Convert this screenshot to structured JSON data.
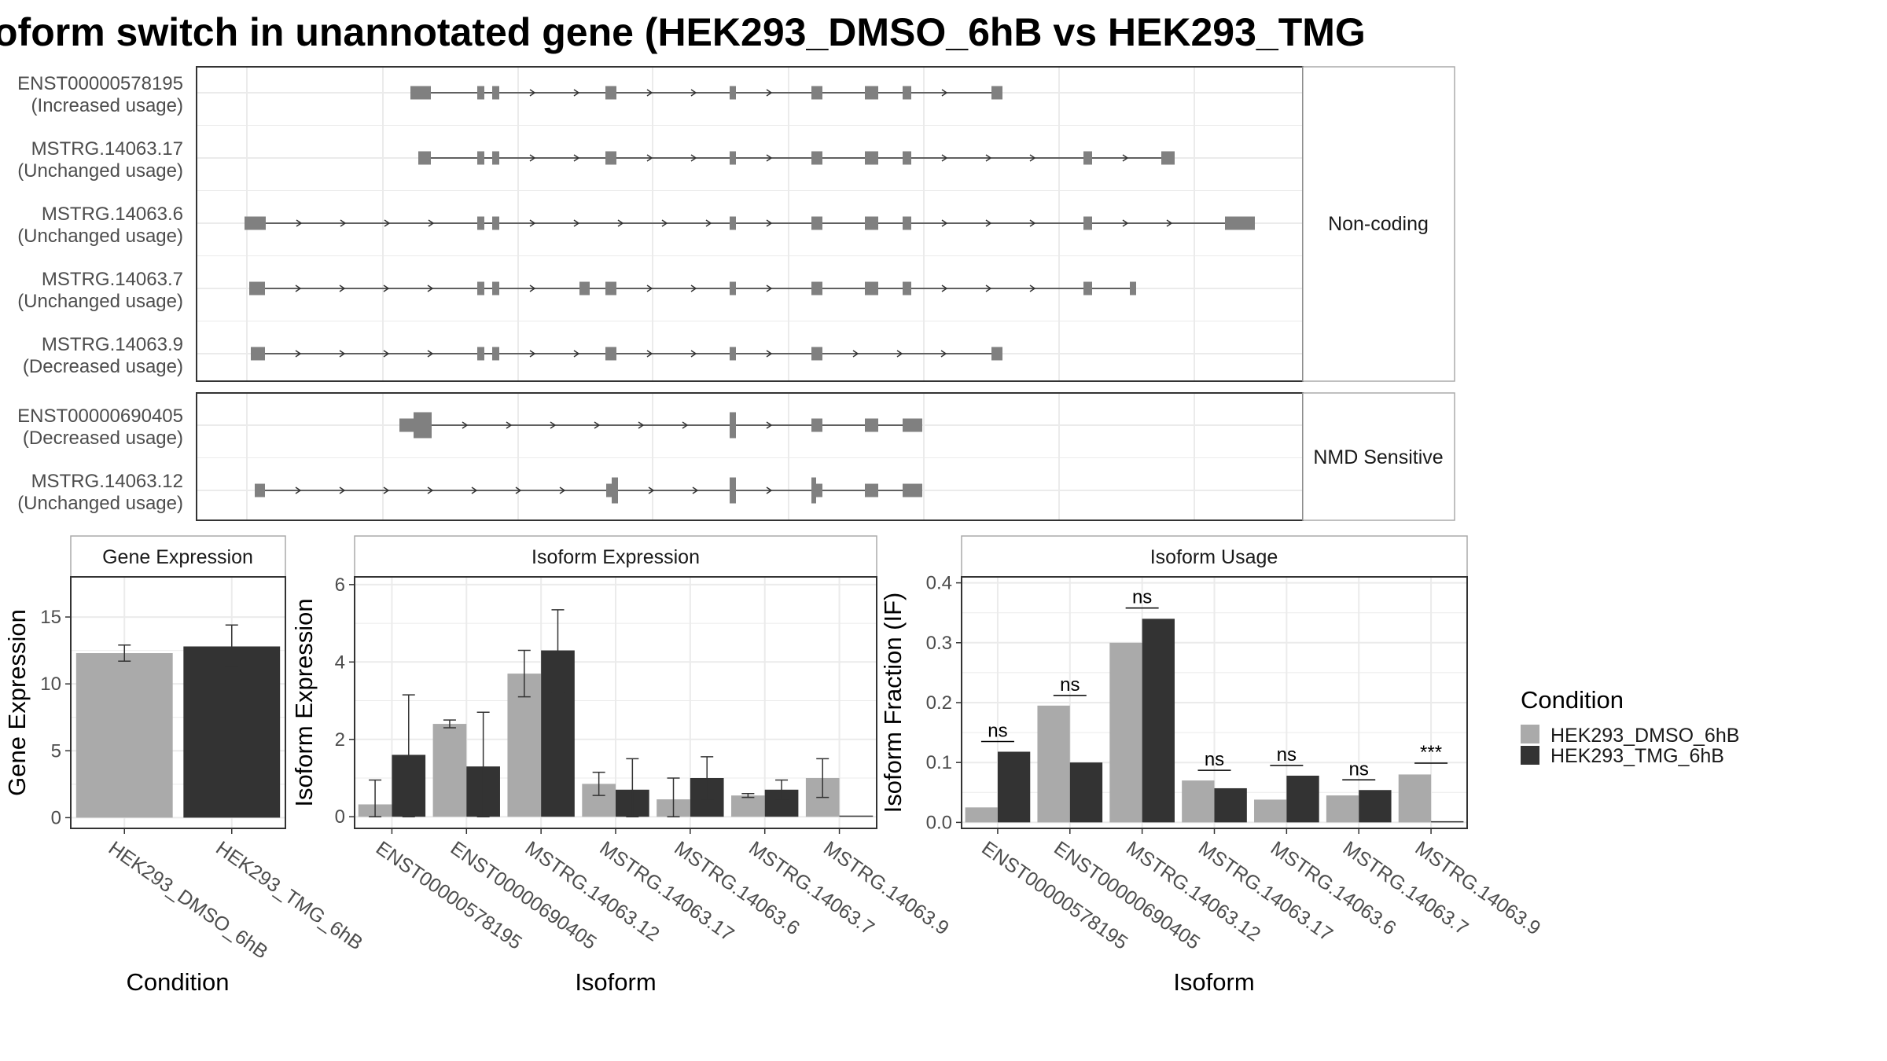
{
  "figure": {
    "title": "oform switch in unannotated gene (HEK293_DMSO_6hB vs HEK293_TMG",
    "colors": {
      "exon": "#808080",
      "dmso": "#aaaaaa",
      "tmg": "#333333",
      "grid": "#ebebeb",
      "strip_bg": "#ffffff"
    }
  },
  "chart_data": [
    {
      "type": "gene-structure",
      "panels": [
        {
          "strip": "Non-coding",
          "isoforms": [
            {
              "id": "ENST00000578195",
              "usage": "(Increased usage)"
            },
            {
              "id": "MSTRG.14063.17",
              "usage": "(Unchanged usage)"
            },
            {
              "id": "MSTRG.14063.6",
              "usage": "(Unchanged usage)"
            },
            {
              "id": "MSTRG.14063.7",
              "usage": "(Unchanged usage)"
            },
            {
              "id": "MSTRG.14063.9",
              "usage": "(Decreased usage)"
            }
          ]
        },
        {
          "strip": "NMD Sensitive",
          "isoforms": [
            {
              "id": "ENST00000690405",
              "usage": "(Decreased usage)"
            },
            {
              "id": "MSTRG.14063.12",
              "usage": "(Unchanged usage)"
            }
          ]
        }
      ]
    },
    {
      "type": "bar",
      "title": "Gene Expression",
      "xlabel": "Condition",
      "ylabel": "Gene Expression",
      "ylim": [
        -0.8,
        18
      ],
      "yticks": [
        0,
        5,
        10,
        15
      ],
      "categories": [
        "HEK293_DMSO_6hB",
        "HEK293_TMG_6hB"
      ],
      "values": [
        12.3,
        12.8
      ],
      "err_low": [
        11.7,
        11.3
      ],
      "err_high": [
        12.9,
        14.4
      ]
    },
    {
      "type": "bar",
      "title": "Isoform Expression",
      "xlabel": "Isoform",
      "ylabel": "Isoform Expression",
      "ylim": [
        -0.3,
        6.2
      ],
      "yticks": [
        0,
        2,
        4,
        6
      ],
      "categories": [
        "ENST00000578195",
        "ENST00000690405",
        "MSTRG.14063.12",
        "MSTRG.14063.17",
        "MSTRG.14063.6",
        "MSTRG.14063.7",
        "MSTRG.14063.9"
      ],
      "series": [
        {
          "name": "HEK293_DMSO_6hB",
          "values": [
            0.32,
            2.4,
            3.7,
            0.85,
            0.45,
            0.55,
            1.0
          ],
          "err_low": [
            0.0,
            2.3,
            3.1,
            0.55,
            0.0,
            0.5,
            0.5
          ],
          "err_high": [
            0.95,
            2.5,
            4.3,
            1.15,
            1.0,
            0.6,
            1.5
          ]
        },
        {
          "name": "HEK293_TMG_6hB",
          "values": [
            1.6,
            1.3,
            4.3,
            0.7,
            1.0,
            0.7,
            0.0
          ],
          "err_low": [
            0.0,
            0.0,
            3.2,
            0.0,
            0.45,
            0.45,
            0.0
          ],
          "err_high": [
            3.15,
            2.7,
            5.35,
            1.5,
            1.55,
            0.95,
            0.0
          ]
        }
      ]
    },
    {
      "type": "bar",
      "title": "Isoform Usage",
      "xlabel": "Isoform",
      "ylabel": "Isoform Fraction (IF)",
      "ylim": [
        -0.01,
        0.41
      ],
      "yticks": [
        0.0,
        0.1,
        0.2,
        0.3,
        0.4
      ],
      "ytick_labels": [
        "0.0",
        "0.1",
        "0.2",
        "0.3",
        "0.4"
      ],
      "categories": [
        "ENST00000578195",
        "ENST00000690405",
        "MSTRG.14063.12",
        "MSTRG.14063.17",
        "MSTRG.14063.6",
        "MSTRG.14063.7",
        "MSTRG.14063.9"
      ],
      "series": [
        {
          "name": "HEK293_DMSO_6hB",
          "values": [
            0.025,
            0.195,
            0.3,
            0.07,
            0.038,
            0.045,
            0.08
          ]
        },
        {
          "name": "HEK293_TMG_6hB",
          "values": [
            0.118,
            0.1,
            0.34,
            0.057,
            0.078,
            0.054,
            0.0
          ]
        }
      ],
      "significance": [
        "ns",
        "ns",
        "ns",
        "ns",
        "ns",
        "ns",
        "***"
      ],
      "significance_y": [
        0.135,
        0.212,
        0.358,
        0.087,
        0.095,
        0.071,
        0.099
      ]
    }
  ],
  "legend": {
    "title": "Condition",
    "items": [
      {
        "label": "HEK293_DMSO_6hB",
        "color": "#aaaaaa"
      },
      {
        "label": "HEK293_TMG_6hB",
        "color": "#333333"
      }
    ]
  }
}
